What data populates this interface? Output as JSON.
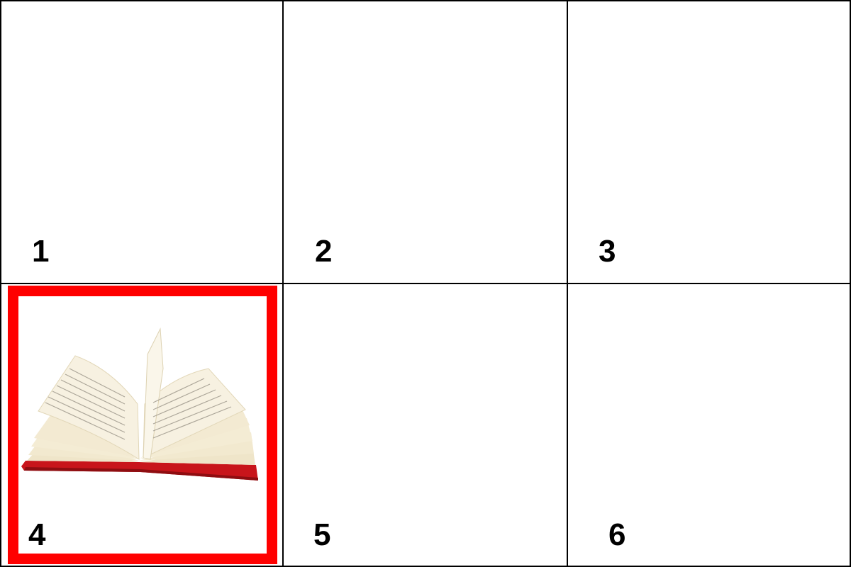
{
  "grid": {
    "cells": [
      {
        "label": "1"
      },
      {
        "label": "2"
      },
      {
        "label": "3"
      },
      {
        "label": "4",
        "image": "open-book",
        "selected": true
      },
      {
        "label": "5"
      },
      {
        "label": "6"
      }
    ]
  },
  "colors": {
    "selection": "#ff0000",
    "grid_line": "#000000",
    "background": "#ffffff",
    "book_cover": "#c8151b",
    "book_pages": "#f3ead2"
  }
}
